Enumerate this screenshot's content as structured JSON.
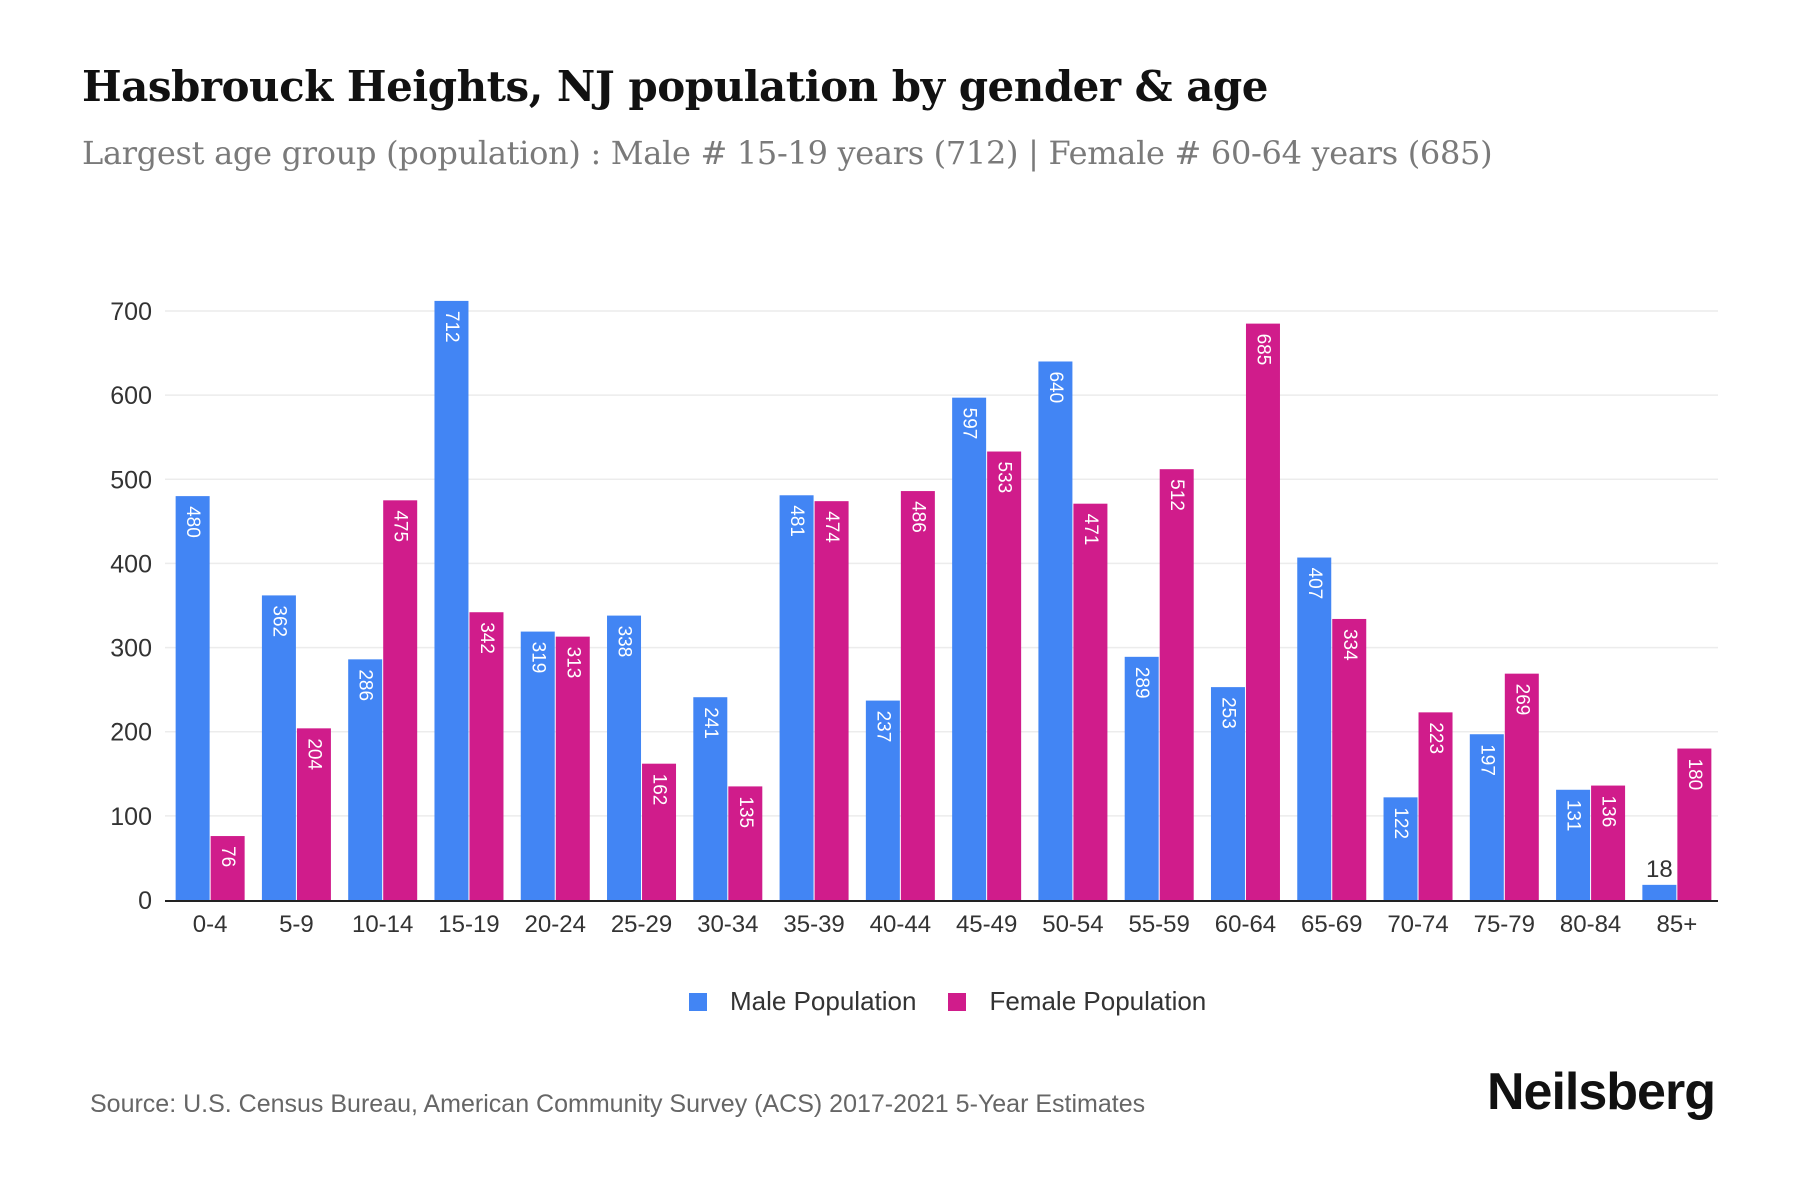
{
  "header": {
    "title": "Hasbrouck Heights, NJ population by gender & age",
    "subtitle": "Largest age group (population) : Male # 15-19 years (712) | Female # 60-64 years (685)"
  },
  "footer": {
    "source": "Source: U.S. Census Bureau, American Community Survey (ACS) 2017-2021 5-Year Estimates",
    "logo": "Neilsberg"
  },
  "chart_data": {
    "type": "bar",
    "title": "Hasbrouck Heights, NJ population by gender & age",
    "subtitle": "Largest age group (population) : Male # 15-19 years (712) | Female # 60-64 years (685)",
    "xlabel": "",
    "ylabel": "",
    "ylim": [
      0,
      700
    ],
    "yticks": [
      0,
      100,
      200,
      300,
      400,
      500,
      600,
      700
    ],
    "grid": true,
    "legend_position": "bottom-center",
    "categories": [
      "0-4",
      "5-9",
      "10-14",
      "15-19",
      "20-24",
      "25-29",
      "30-34",
      "35-39",
      "40-44",
      "45-49",
      "50-54",
      "55-59",
      "60-64",
      "65-69",
      "70-74",
      "75-79",
      "80-84",
      "85+"
    ],
    "series": [
      {
        "name": "Male Population",
        "color": "#4285F4",
        "values": [
          480,
          362,
          286,
          712,
          319,
          338,
          241,
          481,
          237,
          597,
          640,
          289,
          253,
          407,
          122,
          197,
          131,
          18
        ]
      },
      {
        "name": "Female Population",
        "color": "#D01C8B",
        "values": [
          76,
          204,
          475,
          342,
          313,
          162,
          135,
          474,
          486,
          533,
          471,
          512,
          685,
          334,
          223,
          269,
          136,
          180
        ]
      }
    ]
  }
}
